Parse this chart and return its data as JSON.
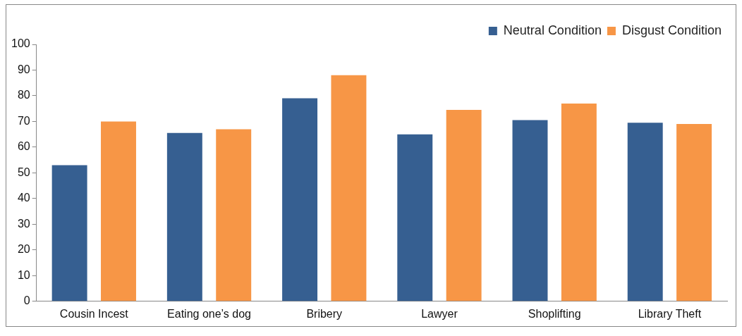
{
  "chart_data": {
    "type": "bar",
    "categories": [
      "Cousin Incest",
      "Eating one’s dog",
      "Bribery",
      "Lawyer",
      "Shoplifting",
      "Library Theft"
    ],
    "series": [
      {
        "name": "Neutral Condition",
        "color": "#365f91",
        "values": [
          53,
          65.5,
          79,
          65,
          70.5,
          69.5
        ]
      },
      {
        "name": "Disgust Condition",
        "color": "#f79646",
        "values": [
          70,
          67,
          88,
          74.5,
          77,
          69
        ]
      }
    ],
    "ylim": [
      0,
      100
    ],
    "yticks": [
      0,
      10,
      20,
      30,
      40,
      50,
      60,
      70,
      80,
      90,
      100
    ],
    "grid": false,
    "legend": "top right"
  }
}
